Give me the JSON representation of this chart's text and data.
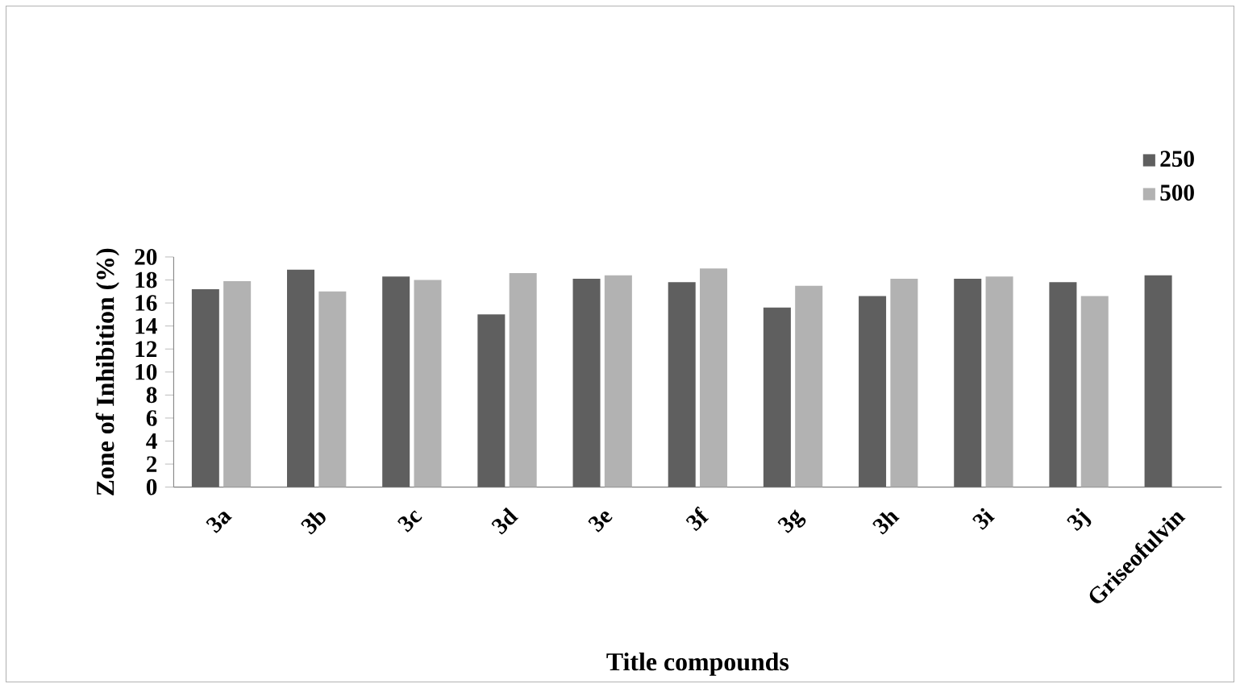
{
  "chart_data": {
    "type": "bar",
    "xlabel": "Title compounds",
    "ylabel": "Zone of Inhibition (%)",
    "categories": [
      "3a",
      "3b",
      "3c",
      "3d",
      "3e",
      "3f",
      "3g",
      "3h",
      "3i",
      "3j",
      "Griseofulvin"
    ],
    "series": [
      {
        "name": "250",
        "color": "#5f5f5f",
        "values": [
          17.2,
          18.9,
          18.3,
          15.0,
          18.1,
          17.8,
          15.6,
          16.6,
          18.1,
          17.8,
          18.4
        ]
      },
      {
        "name": "500",
        "color": "#b2b2b2",
        "values": [
          17.9,
          17.0,
          18.0,
          18.6,
          18.4,
          19.0,
          17.5,
          18.1,
          18.3,
          16.6,
          null
        ]
      }
    ],
    "ylim": [
      0,
      20
    ],
    "yticks": [
      0,
      2,
      4,
      6,
      8,
      10,
      12,
      14,
      16,
      18,
      20
    ],
    "grid": false,
    "legend": "top right"
  }
}
